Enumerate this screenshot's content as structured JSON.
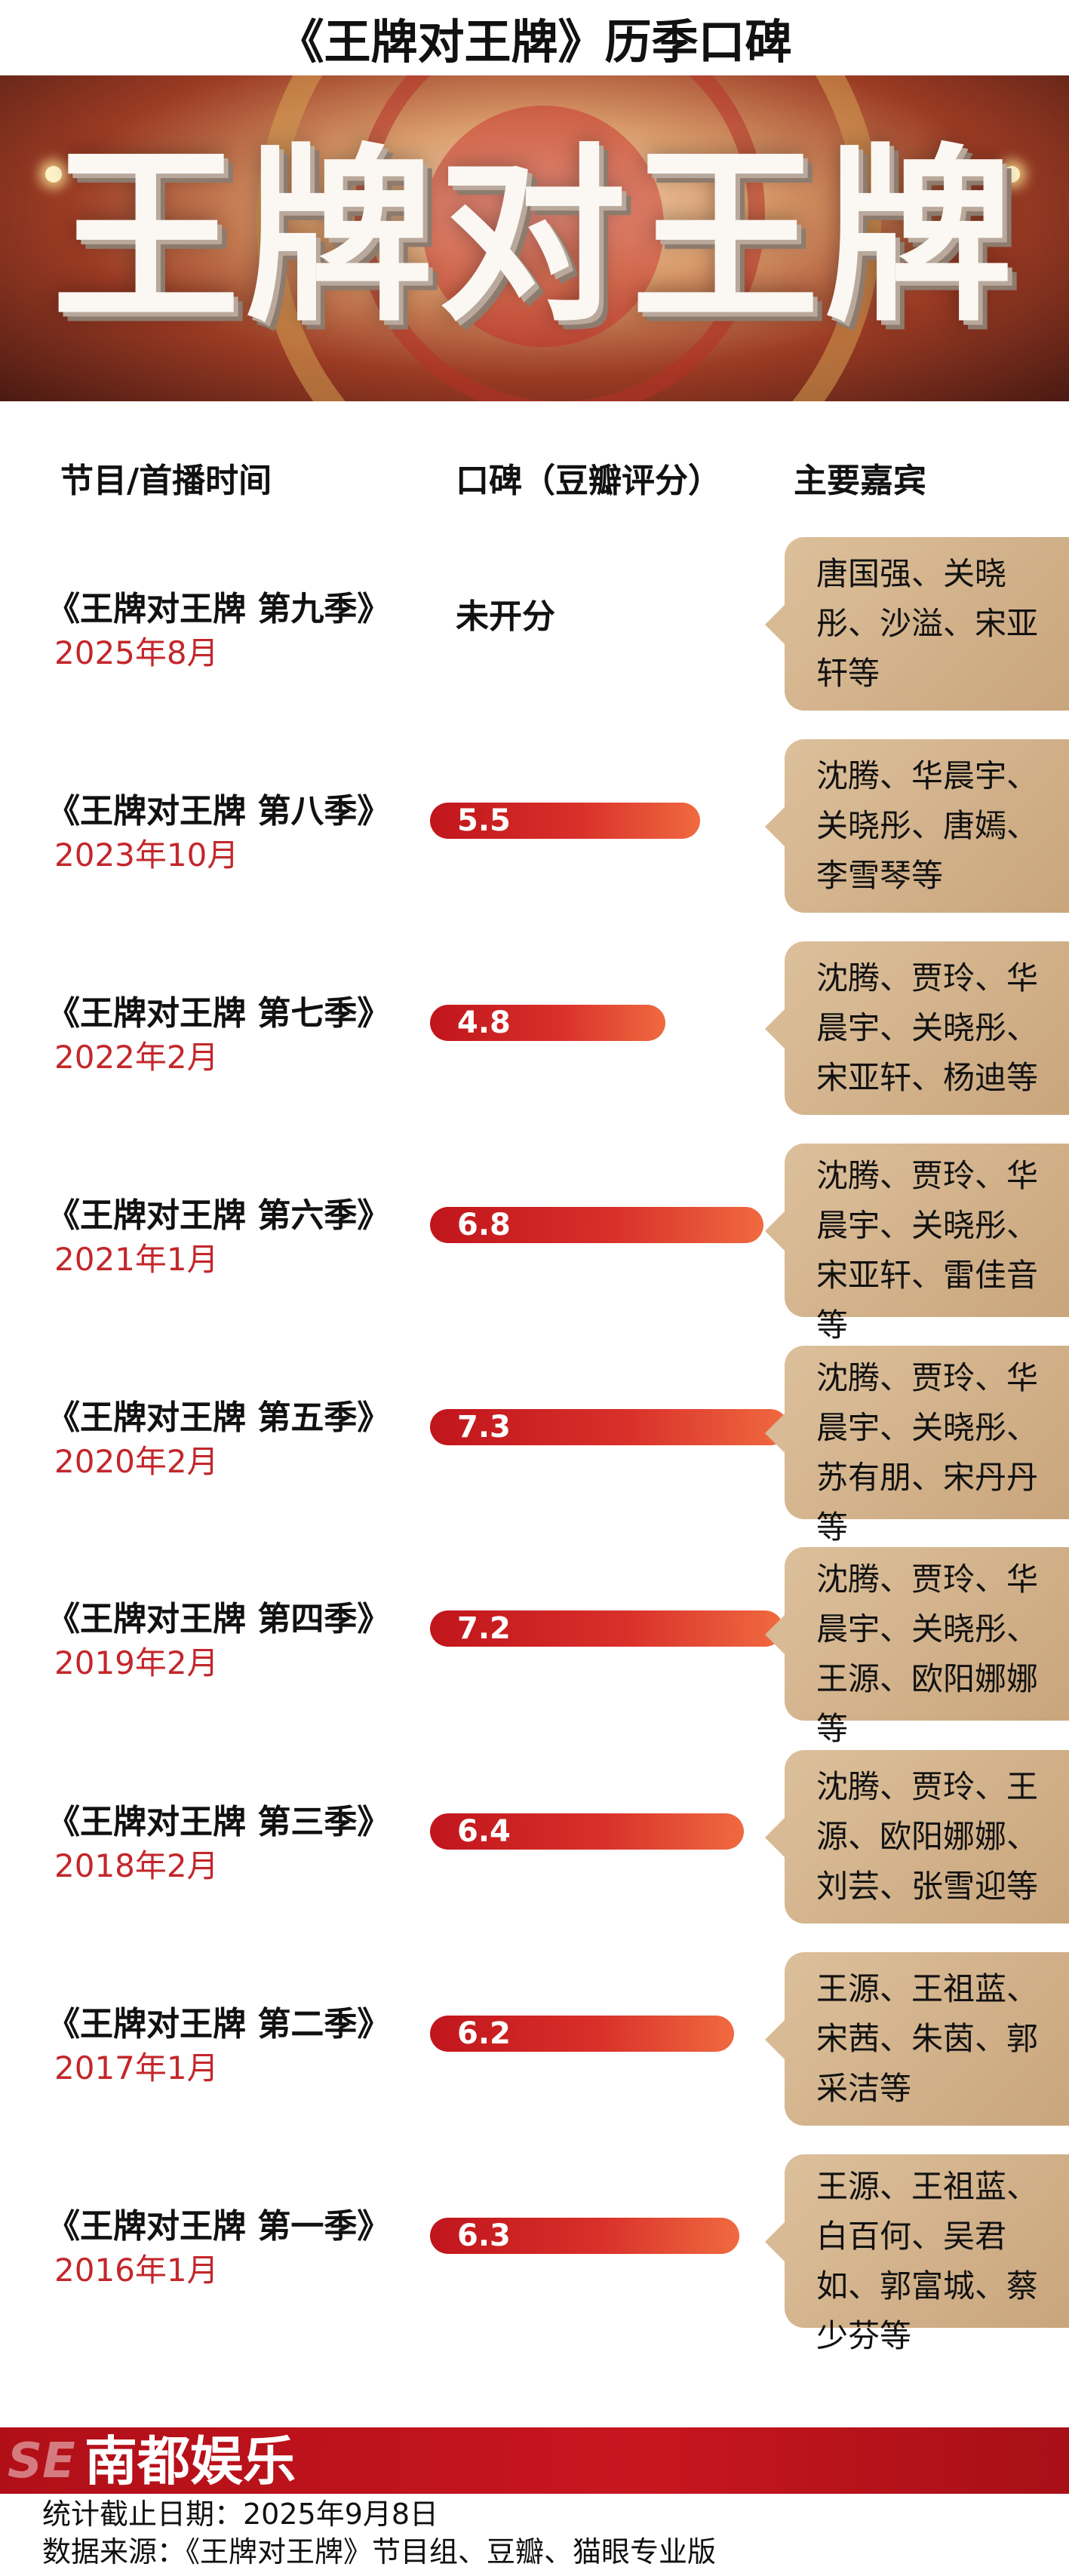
{
  "title": "《王牌对王牌》历季口碑",
  "banner": {
    "logo_text": "王牌对王牌"
  },
  "headers": {
    "program": "节目/首播时间",
    "score": "口碑（豆瓣评分）",
    "guests": "主要嘉宾"
  },
  "rows": [
    {
      "name": "《王牌对王牌 第九季》",
      "date": "2025年8月",
      "score_text": "未开分",
      "guests": "唐国强、关晓彤、沙溢、宋亚轩等"
    },
    {
      "name": "《王牌对王牌 第八季》",
      "date": "2023年10月",
      "score_text": "5.5",
      "guests": "沈腾、华晨宇、关晓彤、唐嫣、李雪琴等"
    },
    {
      "name": "《王牌对王牌 第七季》",
      "date": "2022年2月",
      "score_text": "4.8",
      "guests": "沈腾、贾玲、华晨宇、关晓彤、宋亚轩、杨迪等"
    },
    {
      "name": "《王牌对王牌 第六季》",
      "date": "2021年1月",
      "score_text": "6.8",
      "guests": "沈腾、贾玲、华晨宇、关晓彤、宋亚轩、雷佳音等"
    },
    {
      "name": "《王牌对王牌 第五季》",
      "date": "2020年2月",
      "score_text": "7.3",
      "guests": "沈腾、贾玲、华晨宇、关晓彤、苏有朋、宋丹丹等"
    },
    {
      "name": "《王牌对王牌 第四季》",
      "date": "2019年2月",
      "score_text": "7.2",
      "guests": "沈腾、贾玲、华晨宇、关晓彤、王源、欧阳娜娜等"
    },
    {
      "name": "《王牌对王牌 第三季》",
      "date": "2018年2月",
      "score_text": "6.4",
      "guests": "沈腾、贾玲、王源、欧阳娜娜、刘芸、张雪迎等"
    },
    {
      "name": "《王牌对王牌 第二季》",
      "date": "2017年1月",
      "score_text": "6.2",
      "guests": "王源、王祖蓝、宋茜、朱茵、郭采洁等"
    },
    {
      "name": "《王牌对王牌 第一季》",
      "date": "2016年1月",
      "score_text": "6.3",
      "guests": "王源、王祖蓝、白百何、吴君如、郭富城、蔡少芬等"
    }
  ],
  "chart_data": {
    "type": "bar",
    "title": "《王牌对王牌》历季口碑",
    "categories": [
      "《王牌对王牌 第九季》",
      "《王牌对王牌 第八季》",
      "《王牌对王牌 第七季》",
      "《王牌对王牌 第六季》",
      "《王牌对王牌 第五季》",
      "《王牌对王牌 第四季》",
      "《王牌对王牌 第三季》",
      "《王牌对王牌 第二季》",
      "《王牌对王牌 第一季》"
    ],
    "values": [
      null,
      5.5,
      4.8,
      6.8,
      7.3,
      7.2,
      6.4,
      6.2,
      6.3
    ],
    "orientation": "horizontal",
    "colors": {
      "bar_start": "#c0151c",
      "bar_end": "#f06a40",
      "date": "#c3272b",
      "guest_box": "#d4b48c"
    }
  },
  "footer": {
    "logo_mark": "SE",
    "brand": "南都娱乐",
    "stat_date": "统计截止日期：2025年9月8日",
    "source": "数据来源：《王牌对王牌》节目组、豆瓣、猫眼专业版"
  }
}
